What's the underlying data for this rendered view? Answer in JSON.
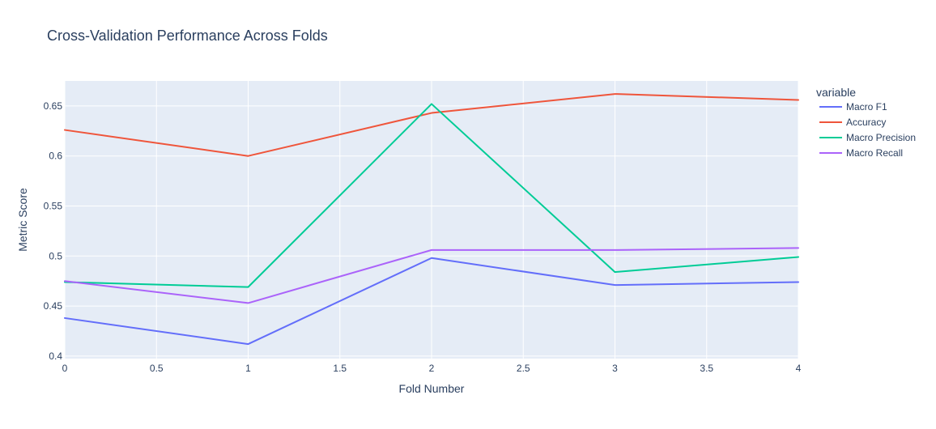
{
  "chart_data": {
    "type": "line",
    "title": "Cross-Validation Performance Across Folds",
    "xlabel": "Fold Number",
    "ylabel": "Metric Score",
    "legend_title": "variable",
    "legend_position": "top-right",
    "grid": true,
    "xlim": [
      0,
      4
    ],
    "ylim": [
      0.3975,
      0.675
    ],
    "x_ticks": [
      0,
      0.5,
      1,
      1.5,
      2,
      2.5,
      3,
      3.5,
      4
    ],
    "x_tick_labels": [
      "0",
      "0.5",
      "1",
      "1.5",
      "2",
      "2.5",
      "3",
      "3.5",
      "4"
    ],
    "y_ticks": [
      0.4,
      0.45,
      0.5,
      0.55,
      0.6,
      0.65
    ],
    "y_tick_labels": [
      "0.4",
      "0.45",
      "0.5",
      "0.55",
      "0.6",
      "0.65"
    ],
    "x": [
      0,
      1,
      2,
      3,
      4
    ],
    "series": [
      {
        "name": "Macro F1",
        "color": "#636efa",
        "values": [
          0.438,
          0.412,
          0.498,
          0.471,
          0.474
        ]
      },
      {
        "name": "Accuracy",
        "color": "#ef553b",
        "values": [
          0.626,
          0.6,
          0.643,
          0.662,
          0.656
        ]
      },
      {
        "name": "Macro Precision",
        "color": "#00cc96",
        "values": [
          0.474,
          0.469,
          0.652,
          0.484,
          0.499
        ]
      },
      {
        "name": "Macro Recall",
        "color": "#ab63fa",
        "values": [
          0.475,
          0.453,
          0.506,
          0.506,
          0.508
        ]
      }
    ],
    "colors": {
      "plot_background": "#e5ecf6",
      "grid": "#ffffff",
      "text": "#2a3f5f",
      "tick_text": "#2a3f5f"
    }
  }
}
